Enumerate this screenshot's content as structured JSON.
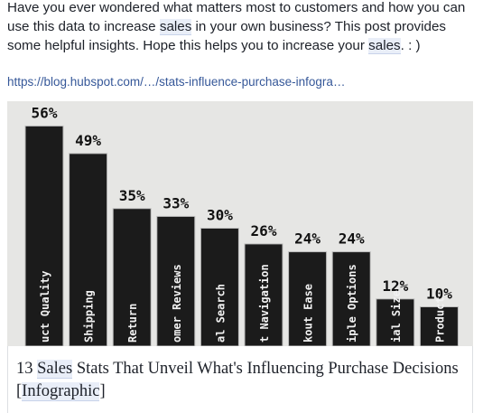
{
  "post": {
    "message": [
      {
        "text": "Have you ever wondered what matters most to customers and how you can use this data to increase ",
        "match": false
      },
      {
        "text": "sales",
        "match": true
      },
      {
        "text": " in your own business? This post provides some helpful insights. Hope this helps you to increase your ",
        "match": false
      },
      {
        "text": "sales",
        "match": true
      },
      {
        "text": ". : )",
        "match": false
      }
    ],
    "link": "https://blog.hubspot.com/…/stats-influence-purchase-infogra…"
  },
  "preview": {
    "chart": {
      "type": "bar",
      "categories": [
        "uct Quality",
        "Shipping",
        "Return",
        "omer Reviews",
        "al Search",
        "t Navigation",
        "kout Ease",
        "iple Options",
        "ial Size",
        "Product"
      ],
      "values": [
        56,
        49,
        35,
        33,
        30,
        26,
        24,
        24,
        12,
        10
      ],
      "value_labels": [
        "56%",
        "49%",
        "35%",
        "33%",
        "30%",
        "26%",
        "24%",
        "24%",
        "12%",
        "10%"
      ],
      "color": "#1b1b1b"
    },
    "title": [
      {
        "text": "13 ",
        "match": false
      },
      {
        "text": "Sales",
        "match": true
      },
      {
        "text": " Stats That Unveil What's Influencing Purchase Decisions [",
        "match": false
      },
      {
        "text": "Infographic",
        "match": true
      },
      {
        "text": "]",
        "match": false
      }
    ]
  }
}
